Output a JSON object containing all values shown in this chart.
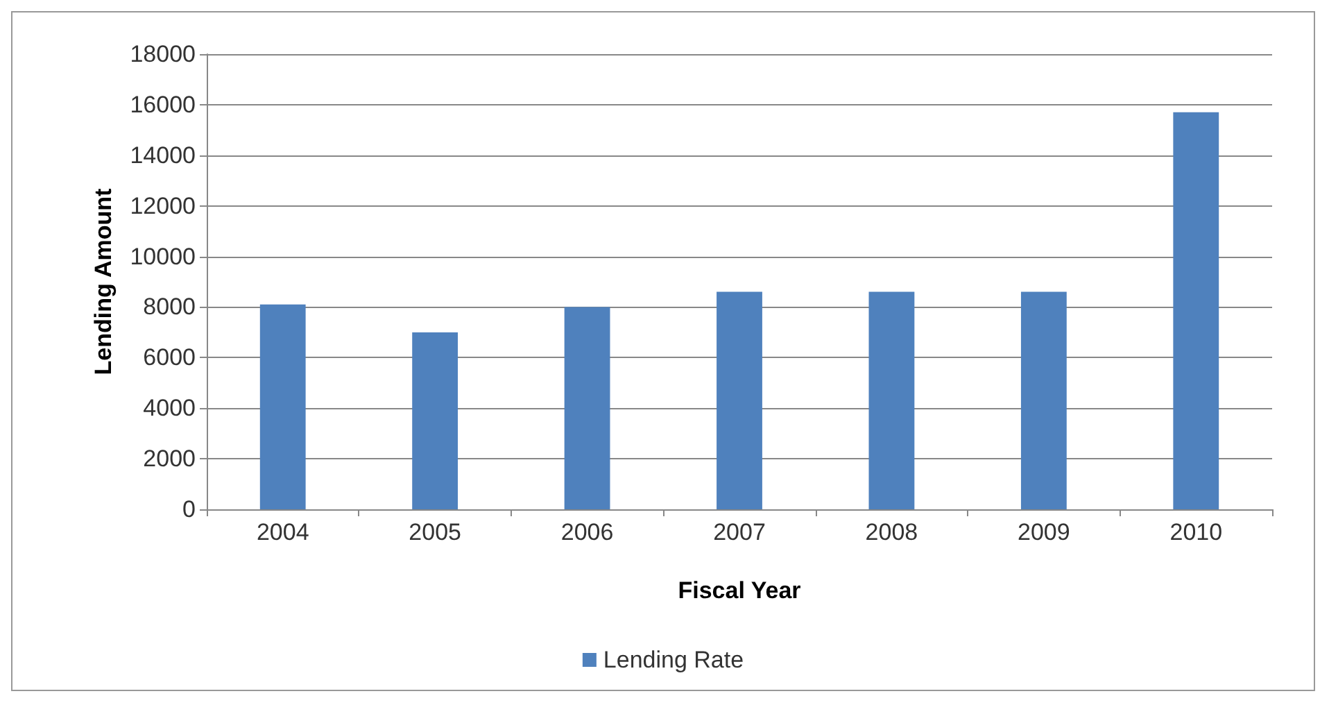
{
  "chart_data": {
    "type": "bar",
    "xlabel": "Fiscal Year",
    "ylabel": "Lending Amount",
    "categories": [
      "2004",
      "2005",
      "2006",
      "2007",
      "2008",
      "2009",
      "2010"
    ],
    "series": [
      {
        "name": "Lending Rate",
        "color": "#4f81bd",
        "values": [
          8100,
          7000,
          8000,
          8600,
          8600,
          8600,
          15700
        ]
      }
    ],
    "ylim": [
      0,
      18000
    ],
    "yticks": [
      0,
      2000,
      4000,
      6000,
      8000,
      10000,
      12000,
      14000,
      16000,
      18000
    ],
    "grid": "y",
    "legend": "bottom"
  }
}
